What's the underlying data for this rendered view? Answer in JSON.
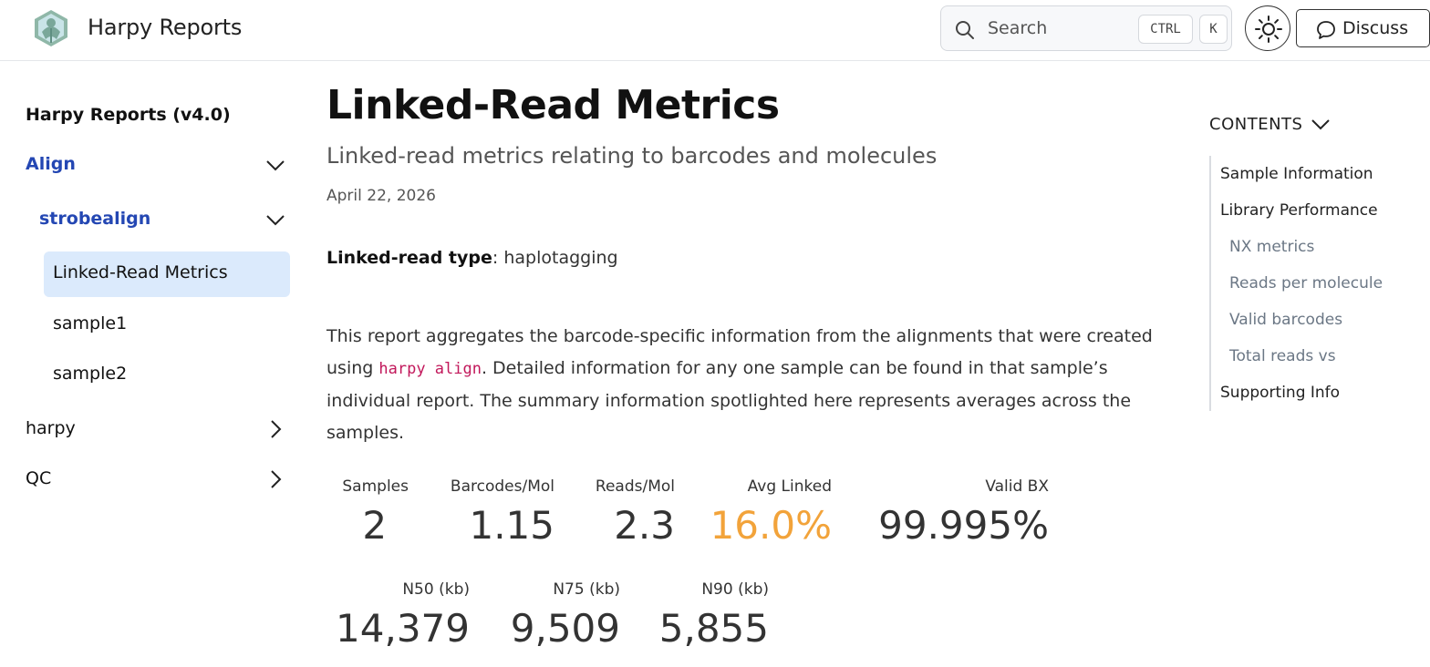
{
  "header": {
    "site_title": "Harpy Reports",
    "search": {
      "placeholder": "Search",
      "kbd_ctrl": "CTRL",
      "kbd_k": "K"
    },
    "discuss_label": "Discuss",
    "icons": {
      "logo": "harpy-logo",
      "search": "search-icon",
      "theme": "sun-icon",
      "discuss": "chat-bubble-icon"
    }
  },
  "sidebar": {
    "heading": "Harpy Reports (v4.0)",
    "items": [
      {
        "label": "Align",
        "state": "expanded"
      },
      {
        "label": "strobealign",
        "state": "expanded"
      },
      {
        "label": "Linked-Read Metrics",
        "state": "active"
      },
      {
        "label": "sample1"
      },
      {
        "label": "sample2"
      },
      {
        "label": "harpy",
        "state": "collapsed"
      },
      {
        "label": "QC",
        "state": "collapsed"
      }
    ]
  },
  "main": {
    "title": "Linked-Read Metrics",
    "subtitle": "Linked-read metrics relating to barcodes and molecules",
    "date": "April 22, 2026",
    "linked_read_type_label": "Linked-read type",
    "linked_read_type_value": ": haplotagging",
    "paragraph": {
      "part1": "This report aggregates the barcode-specific information from the alignments that were created using ",
      "code": "harpy align",
      "part2": ". Detailed information for any one sample can be found in that sample’s individual report. The summary information spotlighted here represents averages across the samples."
    },
    "value_boxes": [
      {
        "title": "Samples",
        "value": "2"
      },
      {
        "title": "Barcodes/Mol",
        "value": "1.15"
      },
      {
        "title": "Reads/Mol",
        "value": "2.3"
      },
      {
        "title": "Avg Linked",
        "value": "16.0%",
        "color": "#f2a33a"
      },
      {
        "title": "Valid BX",
        "value": "99.995%"
      },
      {
        "title": "N50 (kb)",
        "value": "14,379"
      },
      {
        "title": "N75 (kb)",
        "value": "9,509"
      },
      {
        "title": "N90 (kb)",
        "value": "5,855"
      }
    ]
  },
  "toc": {
    "heading": "CONTENTS",
    "items": [
      {
        "label": "Sample Information",
        "level": 1
      },
      {
        "label": "Library Performance",
        "level": 1
      },
      {
        "label": "NX metrics",
        "level": 2
      },
      {
        "label": "Reads per molecule",
        "level": 2
      },
      {
        "label": "Valid barcodes",
        "level": 2
      },
      {
        "label": "Total reads vs",
        "level": 2
      },
      {
        "label": "Supporting Info",
        "level": 1
      }
    ]
  },
  "colors": {
    "accent": "#2447b3",
    "active_bg": "#dbeafc",
    "warning": "#f2a33a"
  }
}
